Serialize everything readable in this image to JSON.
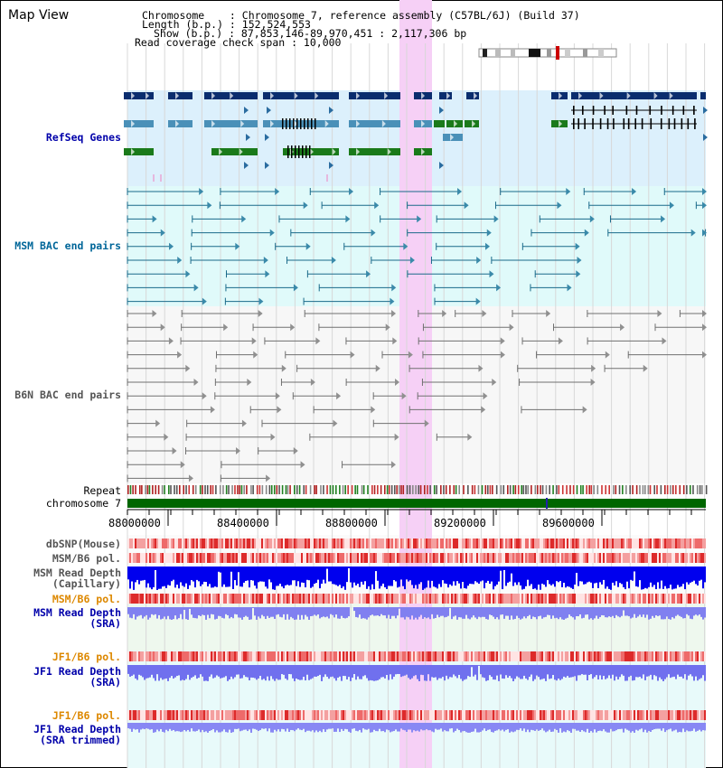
{
  "title": "Map View",
  "info": {
    "chromosome": "Chromosome    : Chromosome 7, reference assembly (C57BL/6J) (Build 37)",
    "length": "Length (b.p.) : 152,524,553",
    "show": "Show (b.p.) : 87,853,146-89,970,451 : 2,117,306 bp",
    "coverage": "Read coverage check span : 10,000"
  },
  "labels": {
    "refseq": "RefSeq Genes",
    "msm_bac": "MSM BAC end pairs",
    "b6n_bac": "B6N BAC end pairs",
    "repeat": "Repeat",
    "chrom": "chromosome 7",
    "dbsnp": "dbSNP(Mouse)",
    "msm_pol_cap": "MSM/B6 pol.",
    "msm_depth_cap": "MSM Read Depth\n(Capillary)",
    "msm_pol_sra": "MSM/B6 pol.",
    "msm_depth_sra": "MSM Read Depth\n(SRA)",
    "jf1_pol": "JF1/B6 pol.",
    "jf1_depth": "JF1 Read Depth\n(SRA)",
    "jf1_pol_trim": "JF1/B6 pol.",
    "jf1_depth_trim": "JF1 Read Depth\n(SRA trimmed)"
  },
  "axis": {
    "ticks": [
      "88000000",
      "88400000",
      "88800000",
      "89200000",
      "89600000"
    ]
  },
  "colors": {
    "label_blue": "#0000aa",
    "label_teal": "#006699",
    "label_orange": "#dd8800",
    "label_gray": "#555555",
    "refseq_bg": "#dcf0fc",
    "msm_bg": "#e0fafa",
    "highlight": "#f6d0f6",
    "chrom_green": "#006600"
  }
}
